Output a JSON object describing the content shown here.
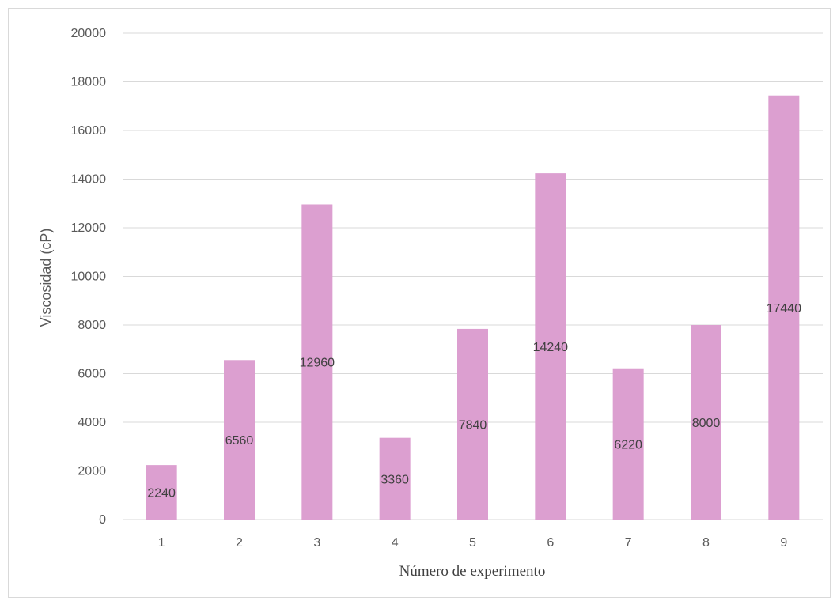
{
  "chart_data": {
    "type": "bar",
    "title": "",
    "xlabel": "Número de experimento",
    "ylabel": "Viscosidad (cP)",
    "categories": [
      "1",
      "2",
      "3",
      "4",
      "5",
      "6",
      "7",
      "8",
      "9"
    ],
    "values": [
      2240,
      6560,
      12960,
      3360,
      7840,
      14240,
      6220,
      8000,
      17440
    ],
    "ylim": [
      0,
      20000
    ],
    "yticks": [
      0,
      2000,
      4000,
      6000,
      8000,
      10000,
      12000,
      14000,
      16000,
      18000,
      20000
    ],
    "grid": true,
    "legend": "none",
    "bar_color": "#dc9fd0"
  }
}
